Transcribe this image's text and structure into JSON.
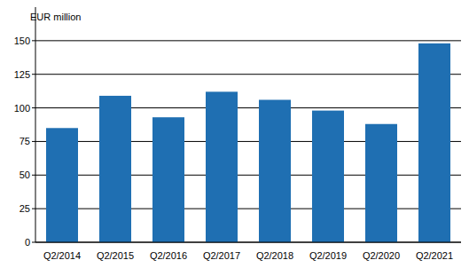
{
  "chart_data": {
    "type": "bar",
    "y_label": "EUR million",
    "categories": [
      "Q2/2014",
      "Q2/2015",
      "Q2/2016",
      "Q2/2017",
      "Q2/2018",
      "Q2/2019",
      "Q2/2020",
      "Q2/2021"
    ],
    "values": [
      85,
      109,
      93,
      112,
      106,
      98,
      88,
      148
    ],
    "color": "#1f6fb2",
    "ylim": [
      0,
      175
    ],
    "yticks": [
      0,
      25,
      50,
      75,
      100,
      125,
      150
    ],
    "grid": true
  }
}
